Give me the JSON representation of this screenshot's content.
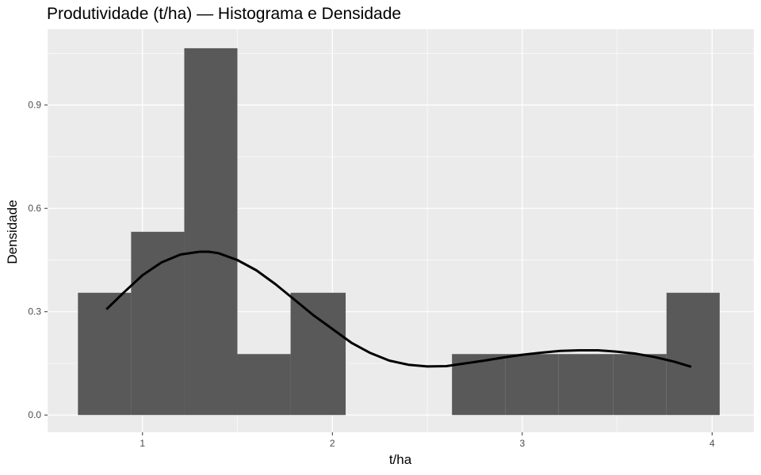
{
  "chart_data": {
    "type": "bar",
    "title": "Produtividade (t/ha) — Histograma e Densidade",
    "xlabel": "t/ha",
    "ylabel": "Densidade",
    "xlim": [
      0.5,
      4.22
    ],
    "ylim": [
      -0.05,
      1.12
    ],
    "x_ticks": [
      1,
      2,
      3,
      4
    ],
    "x_tick_labels": [
      "1",
      "2",
      "3",
      "4"
    ],
    "y_ticks": [
      0.0,
      0.3,
      0.6,
      0.9
    ],
    "y_tick_labels": [
      "0.0",
      "0.3",
      "0.6",
      "0.9"
    ],
    "grid": true,
    "colors": {
      "panel": "#ebebeb",
      "grid": "#ffffff",
      "bar": "#595959",
      "density": "#000000",
      "tick": "#333333"
    },
    "bins": [
      {
        "x0": 0.66,
        "x1": 0.94,
        "density": 0.355
      },
      {
        "x0": 0.94,
        "x1": 1.22,
        "density": 0.532
      },
      {
        "x0": 1.22,
        "x1": 1.5,
        "density": 1.065
      },
      {
        "x0": 1.5,
        "x1": 1.78,
        "density": 0.177
      },
      {
        "x0": 1.78,
        "x1": 2.07,
        "density": 0.355
      },
      {
        "x0": 2.07,
        "x1": 2.35,
        "density": 0.0
      },
      {
        "x0": 2.35,
        "x1": 2.63,
        "density": 0.0
      },
      {
        "x0": 2.63,
        "x1": 2.91,
        "density": 0.177
      },
      {
        "x0": 2.91,
        "x1": 3.19,
        "density": 0.177
      },
      {
        "x0": 3.19,
        "x1": 3.48,
        "density": 0.177
      },
      {
        "x0": 3.48,
        "x1": 3.76,
        "density": 0.177
      },
      {
        "x0": 3.76,
        "x1": 4.04,
        "density": 0.355
      }
    ],
    "series": [
      {
        "type": "line",
        "x": [
          0.81,
          0.9,
          1.0,
          1.1,
          1.2,
          1.3,
          1.35,
          1.4,
          1.5,
          1.6,
          1.7,
          1.8,
          1.9,
          2.0,
          2.1,
          2.2,
          2.3,
          2.4,
          2.5,
          2.6,
          2.7,
          2.8,
          2.9,
          3.0,
          3.1,
          3.2,
          3.3,
          3.4,
          3.5,
          3.6,
          3.7,
          3.8,
          3.89
        ],
        "y": [
          0.307,
          0.355,
          0.406,
          0.443,
          0.466,
          0.474,
          0.474,
          0.47,
          0.45,
          0.42,
          0.38,
          0.335,
          0.29,
          0.25,
          0.21,
          0.18,
          0.158,
          0.146,
          0.141,
          0.142,
          0.15,
          0.158,
          0.167,
          0.175,
          0.181,
          0.186,
          0.188,
          0.188,
          0.184,
          0.178,
          0.168,
          0.155,
          0.14
        ]
      }
    ]
  }
}
